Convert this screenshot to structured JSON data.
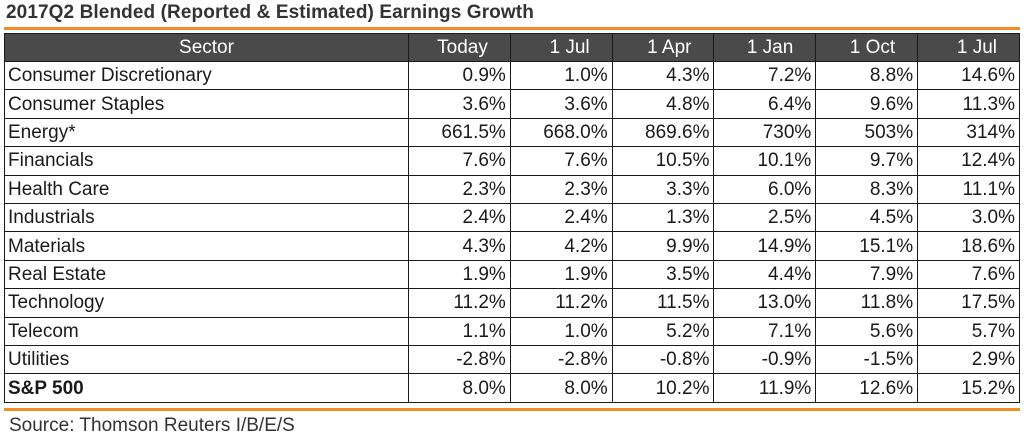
{
  "title": "2017Q2 Blended (Reported & Estimated) Earnings Growth",
  "source": "Source: Thomson Reuters I/B/E/S",
  "colors": {
    "accent": "#f28c28",
    "header_bg": "#4a4a4a"
  },
  "chart_data": {
    "type": "table",
    "title": "2017Q2 Blended (Reported & Estimated) Earnings Growth",
    "columns": [
      "Sector",
      "Today",
      "1 Jul",
      "1 Apr",
      "1 Jan",
      "1 Oct",
      "1 Jul"
    ],
    "rows": [
      [
        "Consumer Discretionary",
        "0.9%",
        "1.0%",
        "4.3%",
        "7.2%",
        "8.8%",
        "14.6%"
      ],
      [
        "Consumer Staples",
        "3.6%",
        "3.6%",
        "4.8%",
        "6.4%",
        "9.6%",
        "11.3%"
      ],
      [
        "Energy*",
        "661.5%",
        "668.0%",
        "869.6%",
        "730%",
        "503%",
        "314%"
      ],
      [
        "Financials",
        "7.6%",
        "7.6%",
        "10.5%",
        "10.1%",
        "9.7%",
        "12.4%"
      ],
      [
        "Health Care",
        "2.3%",
        "2.3%",
        "3.3%",
        "6.0%",
        "8.3%",
        "11.1%"
      ],
      [
        "Industrials",
        "2.4%",
        "2.4%",
        "1.3%",
        "2.5%",
        "4.5%",
        "3.0%"
      ],
      [
        "Materials",
        "4.3%",
        "4.2%",
        "9.9%",
        "14.9%",
        "15.1%",
        "18.6%"
      ],
      [
        "Real Estate",
        "1.9%",
        "1.9%",
        "3.5%",
        "4.4%",
        "7.9%",
        "7.6%"
      ],
      [
        "Technology",
        "11.2%",
        "11.2%",
        "11.5%",
        "13.0%",
        "11.8%",
        "17.5%"
      ],
      [
        "Telecom",
        "1.1%",
        "1.0%",
        "5.2%",
        "7.1%",
        "5.6%",
        "5.7%"
      ],
      [
        "Utilities",
        "-2.8%",
        "-2.8%",
        "-0.8%",
        "-0.9%",
        "-1.5%",
        "2.9%"
      ],
      [
        "S&P 500",
        "8.0%",
        "8.0%",
        "10.2%",
        "11.9%",
        "12.6%",
        "15.2%"
      ]
    ]
  }
}
